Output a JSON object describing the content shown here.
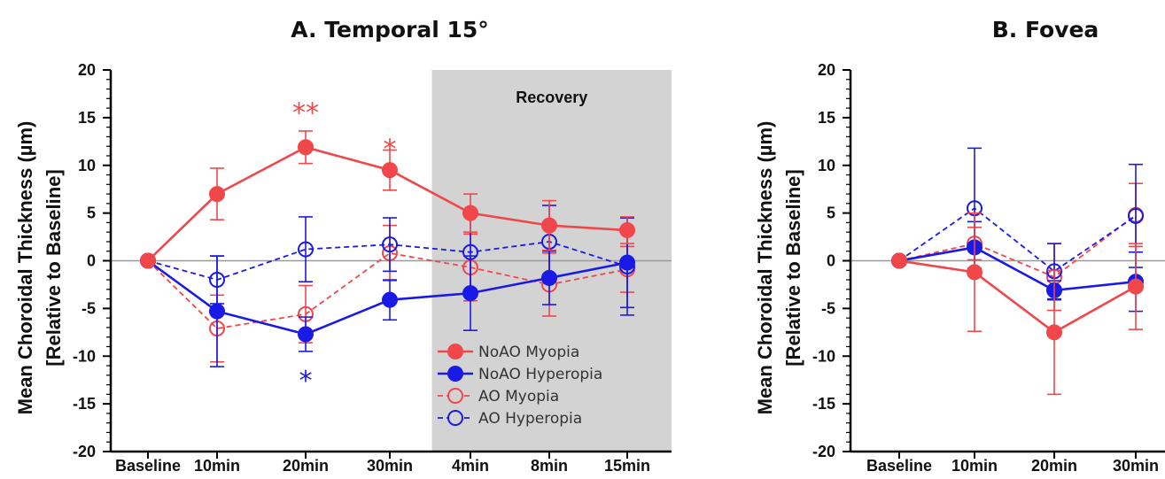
{
  "colors": {
    "myopia": "#f0474a",
    "hyperopia": "#1a1ae6",
    "shade": "#d3d3d3",
    "zero": "#9a9a9a"
  },
  "chart_data": [
    {
      "type": "line",
      "title": "A. Temporal 15°",
      "ylabel": [
        "Mean Choroidal Thickness (µm)",
        "[Relative to Baseline]"
      ],
      "categories": [
        "Baseline",
        "10min",
        "20min",
        "30min",
        "4min",
        "8min",
        "15min"
      ],
      "ylim": [
        -20,
        20
      ],
      "yticks": [
        20,
        15,
        10,
        5,
        0,
        -5,
        -10,
        -15,
        -20
      ],
      "shaded_region": {
        "label": "Recovery",
        "from_category": "4min",
        "to_category": "15min"
      },
      "legend": {
        "placement": "bottom-right"
      },
      "series": [
        {
          "name": "NoAO Myopia",
          "color": "myopia",
          "marker": "filled",
          "dash": false,
          "values": [
            0,
            7.0,
            11.9,
            9.5,
            5.0,
            3.7,
            3.2
          ],
          "errors": [
            0,
            2.7,
            1.7,
            2.1,
            2.0,
            2.6,
            1.4
          ]
        },
        {
          "name": "NoAO Hyperopia",
          "color": "hyperopia",
          "marker": "filled",
          "dash": false,
          "values": [
            0,
            -5.3,
            -7.7,
            -4.1,
            -3.4,
            -1.8,
            -0.2
          ],
          "errors": [
            0,
            5.8,
            1.8,
            2.1,
            3.9,
            2.8,
            4.7
          ]
        },
        {
          "name": "AO Myopia",
          "color": "myopia",
          "marker": "open",
          "dash": true,
          "values": [
            0,
            -7.1,
            -5.6,
            0.8,
            -0.7,
            -2.5,
            -0.9
          ],
          "errors": [
            0,
            3.5,
            3.0,
            2.9,
            3.5,
            3.3,
            2.4
          ]
        },
        {
          "name": "AO Hyperopia",
          "color": "hyperopia",
          "marker": "open",
          "dash": true,
          "values": [
            0,
            -2.0,
            1.2,
            1.7,
            0.9,
            2.0,
            -0.6
          ],
          "errors": [
            0,
            2.5,
            3.4,
            2.8,
            4.2,
            3.8,
            5.1
          ]
        }
      ],
      "annotations": [
        {
          "text": "**",
          "category": "20min",
          "y": 15.7,
          "color": "myopia"
        },
        {
          "text": "*",
          "category": "30min",
          "y": 11.9,
          "color": "myopia"
        },
        {
          "text": "*",
          "category": "20min",
          "y": -12.4,
          "color": "hyperopia"
        }
      ]
    },
    {
      "type": "line",
      "title": "B. Fovea",
      "ylabel": [
        "Mean Choroidal Thickness (µm)",
        "[Relative to Baseline]"
      ],
      "categories": [
        "Baseline",
        "10min",
        "20min",
        "30min"
      ],
      "ylim": [
        -20,
        20
      ],
      "yticks": [
        20,
        15,
        10,
        5,
        0,
        -5,
        -10,
        -15,
        -20
      ],
      "series": [
        {
          "name": "NoAO Myopia",
          "color": "myopia",
          "marker": "filled",
          "dash": false,
          "values": [
            0,
            -1.2,
            -7.5,
            -2.7
          ],
          "errors": [
            0,
            6.2,
            6.5,
            4.5
          ]
        },
        {
          "name": "NoAO Hyperopia",
          "color": "hyperopia",
          "marker": "filled",
          "dash": false,
          "values": [
            0,
            1.4,
            -3.1,
            -2.2
          ],
          "errors": [
            0,
            2.7,
            1.0,
            3.1
          ]
        },
        {
          "name": "AO Myopia",
          "color": "myopia",
          "marker": "open",
          "dash": true,
          "values": [
            0,
            1.8,
            -1.7,
            4.8
          ],
          "errors": [
            0,
            1.7,
            3.5,
            3.3
          ]
        },
        {
          "name": "AO Hyperopia",
          "color": "hyperopia",
          "marker": "open",
          "dash": true,
          "values": [
            0,
            5.5,
            -1.1,
            4.7
          ],
          "errors": [
            0,
            6.3,
            2.9,
            5.4
          ]
        }
      ]
    }
  ]
}
